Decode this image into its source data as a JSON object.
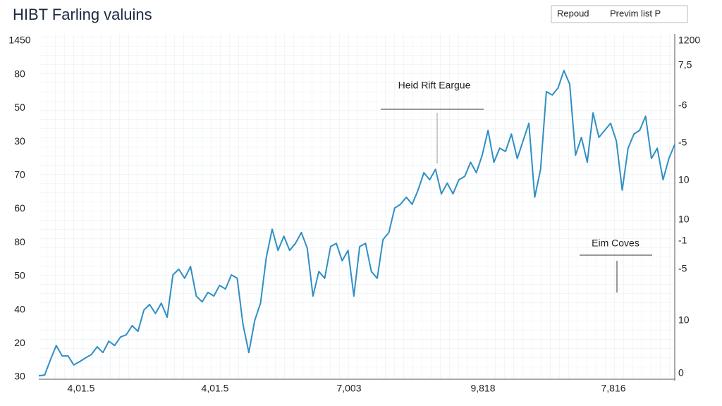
{
  "chart_data": {
    "type": "line",
    "title": "HIBT Farling valuins",
    "buttons": [
      "Repoud",
      "Previm list P"
    ],
    "left_axis_labels": [
      "1450",
      "80",
      "50",
      "30",
      "70",
      "60",
      "80",
      "50",
      "40",
      "20",
      "30"
    ],
    "right_axis_labels": [
      "1200",
      "7,5",
      "-6",
      "-5",
      "10",
      "10",
      "-1",
      "-5",
      "10",
      "0"
    ],
    "x_axis_labels": [
      "4,01.5",
      "4,01.5",
      "7,003",
      "9,818",
      "7,816"
    ],
    "annotations": [
      "Heid Rift Eargue",
      "Eim Coves"
    ],
    "ylim": [
      0,
      100
    ],
    "grid": true,
    "series": [
      {
        "color": "#2f8fc4",
        "values": [
          0.4,
          0.6,
          5.2,
          9.4,
          6.3,
          6.3,
          3.6,
          4.6,
          5.7,
          6.7,
          9.0,
          7.3,
          10.7,
          9.4,
          11.9,
          12.6,
          15.3,
          13.6,
          19.9,
          21.6,
          18.9,
          22.0,
          17.8,
          30.4,
          32.1,
          29.4,
          32.9,
          24.1,
          22.4,
          25.2,
          24.1,
          27.3,
          26.2,
          30.4,
          29.4,
          15.7,
          7.3,
          16.8,
          22.0,
          35.6,
          44.0,
          37.7,
          41.9,
          37.7,
          39.8,
          43.0,
          38.4,
          24.1,
          31.4,
          29.4,
          38.8,
          39.8,
          34.6,
          37.7,
          24.1,
          38.8,
          39.8,
          31.4,
          29.4,
          40.9,
          43.0,
          50.3,
          51.4,
          53.5,
          51.4,
          55.6,
          60.8,
          58.7,
          61.8,
          54.5,
          57.7,
          54.5,
          58.7,
          59.7,
          63.9,
          60.8,
          66.0,
          73.4,
          63.9,
          68.1,
          67.1,
          72.3,
          65.0,
          70.2,
          75.5,
          53.5,
          61.8,
          84.9,
          83.9,
          86.0,
          91.2,
          87.1,
          66.0,
          71.3,
          63.9,
          78.6,
          71.3,
          73.4,
          75.5,
          70.2,
          55.6,
          68.1,
          72.3,
          73.4,
          77.6,
          65.0,
          68.1,
          58.7,
          65.0,
          69.2
        ]
      }
    ]
  }
}
